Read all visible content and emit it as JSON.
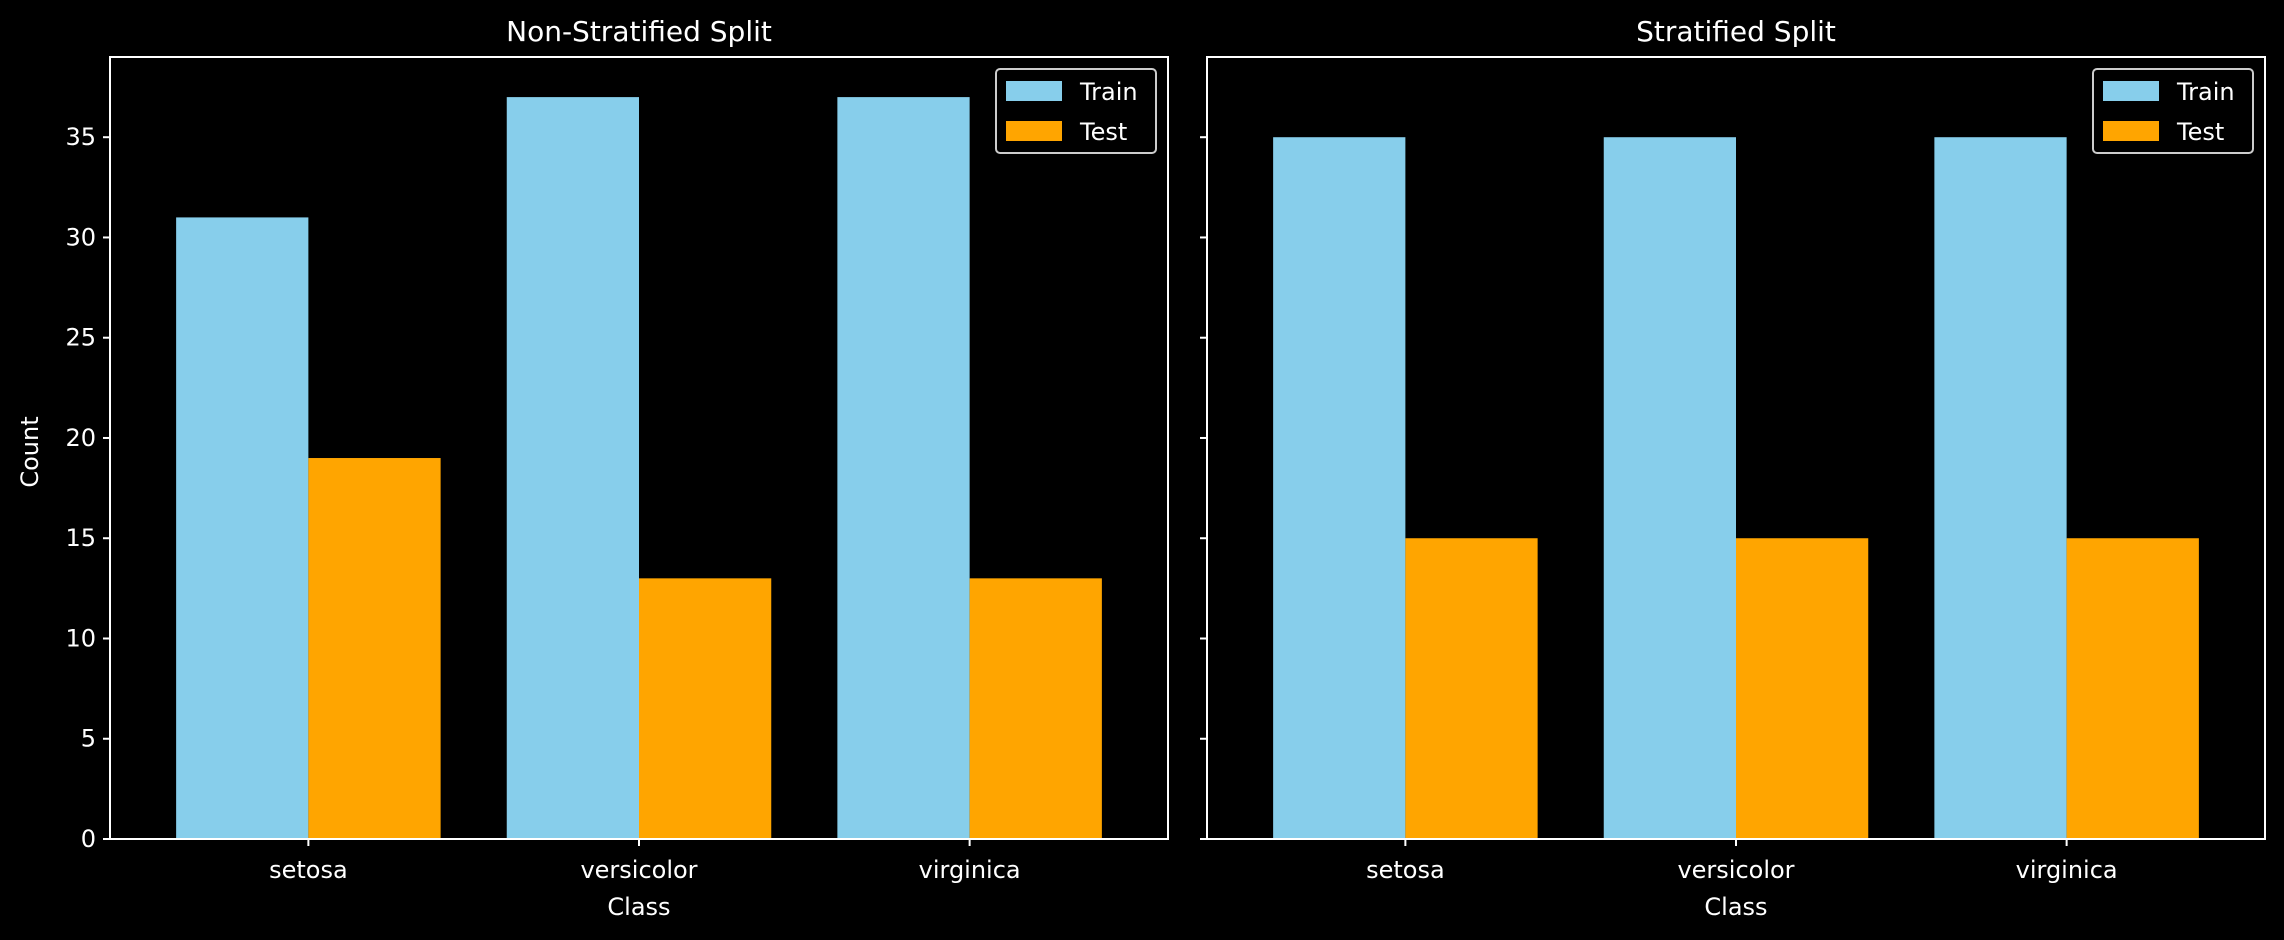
{
  "figure": {
    "background": "#000000",
    "foreground": "#ffffff"
  },
  "chart_data": [
    {
      "type": "bar",
      "title": "Non-Stratified Split",
      "xlabel": "Class",
      "ylabel": "Count",
      "categories": [
        "setosa",
        "versicolor",
        "virginica"
      ],
      "series": [
        {
          "name": "Train",
          "color": "#87ceeb",
          "values": [
            31,
            37,
            37
          ]
        },
        {
          "name": "Test",
          "color": "#ffa500",
          "values": [
            19,
            13,
            13
          ]
        }
      ],
      "ylim": [
        0,
        39
      ],
      "yticks": [
        0,
        5,
        10,
        15,
        20,
        25,
        30,
        35
      ],
      "ytick_labels_visible": true,
      "grid": false,
      "legend": "top-right"
    },
    {
      "type": "bar",
      "title": "Stratified Split",
      "xlabel": "Class",
      "ylabel": "",
      "categories": [
        "setosa",
        "versicolor",
        "virginica"
      ],
      "series": [
        {
          "name": "Train",
          "color": "#87ceeb",
          "values": [
            35,
            35,
            35
          ]
        },
        {
          "name": "Test",
          "color": "#ffa500",
          "values": [
            15,
            15,
            15
          ]
        }
      ],
      "ylim": [
        0,
        39
      ],
      "yticks": [
        0,
        5,
        10,
        15,
        20,
        25,
        30,
        35
      ],
      "ytick_labels_visible": false,
      "grid": false,
      "legend": "top-right"
    }
  ]
}
